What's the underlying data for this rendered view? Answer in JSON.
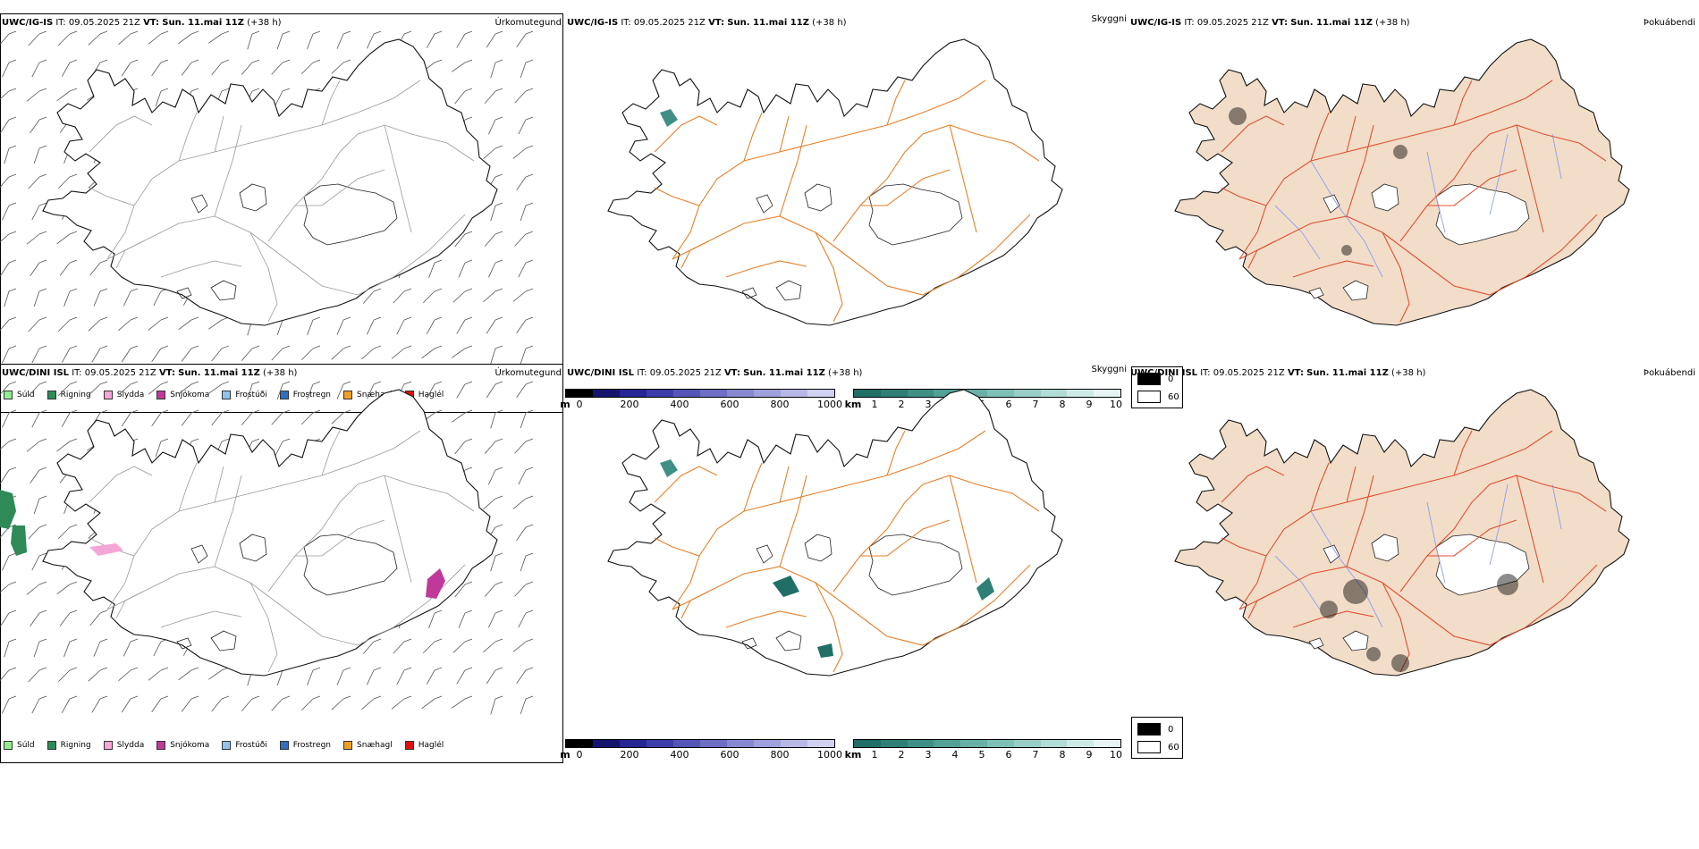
{
  "rows": [
    {
      "model": "UWC/IG-IS",
      "it_label": "IT:",
      "it_value": "09.05.2025 21Z",
      "vt_label": "VT:",
      "vt_value": "Sun. 11.mai 11Z",
      "lead": "(+38 h)"
    },
    {
      "model": "UWC/DINI ISL",
      "it_label": "IT:",
      "it_value": "09.05.2025 21Z",
      "vt_label": "VT:",
      "vt_value": "Sun. 11.mai 11Z",
      "lead": "(+38 h)"
    }
  ],
  "panel_titles": {
    "precip_type": "Úrkomutegund",
    "visibility": "Skyggni",
    "fog": "Þokuábendi"
  },
  "precip_legend": [
    {
      "label": "Súld",
      "color": "#90ee90"
    },
    {
      "label": "Rigning",
      "color": "#2e8b57"
    },
    {
      "label": "Slydda",
      "color": "#f4a6d7"
    },
    {
      "label": "Snjókoma",
      "color": "#c0399a"
    },
    {
      "label": "Frostúði",
      "color": "#8ec5f0"
    },
    {
      "label": "Frostregn",
      "color": "#2f6fc0"
    },
    {
      "label": "Snæhagl",
      "color": "#f0a020"
    },
    {
      "label": "Haglél",
      "color": "#e01010"
    }
  ],
  "height_scale": {
    "unit": "m",
    "ticks": [
      "0",
      "200",
      "400",
      "600",
      "800",
      "1000"
    ],
    "colors": [
      "#000000",
      "#14146e",
      "#262694",
      "#3c3caa",
      "#5555b8",
      "#6e6ec4",
      "#8888d0",
      "#a0a0dc",
      "#b8b8e6",
      "#d0d0f0"
    ]
  },
  "visibility_scale": {
    "unit": "km",
    "ticks": [
      "1",
      "2",
      "3",
      "4",
      "5",
      "6",
      "7",
      "8",
      "9",
      "10"
    ],
    "colors": [
      "#1f6f66",
      "#2f7f76",
      "#3f8f86",
      "#52a096",
      "#68b0a6",
      "#80bfb6",
      "#98cec6",
      "#b2dcd6",
      "#cceae6",
      "#e6f5f3"
    ]
  },
  "fog_legend": [
    {
      "label": "0",
      "color": "#000000"
    },
    {
      "label": "60",
      "color": "#ffffff"
    }
  ],
  "colors": {
    "land_fill": "#f2ddc9",
    "road": "#e4802a",
    "road_dark": "#e05030",
    "river": "#8f9df2",
    "coast": "#111111"
  }
}
